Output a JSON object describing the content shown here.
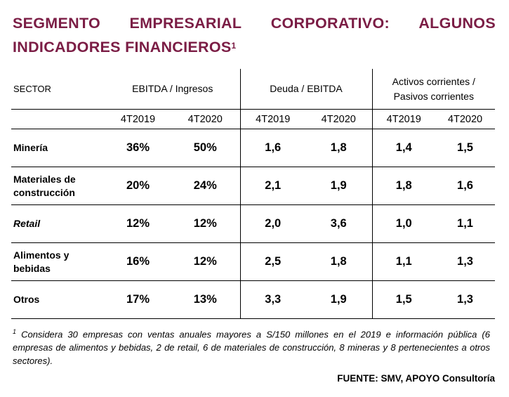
{
  "title": {
    "line1_words": [
      "SEGMENTO",
      "EMPRESARIAL",
      "CORPORATIVO:",
      "ALGUNOS"
    ],
    "line2": "INDICADORES FINANCIEROS",
    "footnote_mark": "1"
  },
  "table": {
    "sector_header": "SECTOR",
    "groups": [
      {
        "line1": "EBITDA / Ingresos",
        "line2": ""
      },
      {
        "line1": "Deuda / EBITDA",
        "line2": ""
      },
      {
        "line1": "Activos corrientes /",
        "line2": "Pasivos corrientes"
      }
    ],
    "periods": [
      "4T2019",
      "4T2020",
      "4T2019",
      "4T2020",
      "4T2019",
      "4T2020"
    ],
    "rows": [
      {
        "sector_l1": "Minería",
        "sector_l2": "",
        "values": [
          "36%",
          "50%",
          "1,6",
          "1,8",
          "1,4",
          "1,5"
        ]
      },
      {
        "sector_l1": "Materiales de",
        "sector_l2": "construcción",
        "values": [
          "20%",
          "24%",
          "2,1",
          "1,9",
          "1,8",
          "1,6"
        ]
      },
      {
        "sector_l1": "Retail",
        "sector_l2": "",
        "values": [
          "12%",
          "12%",
          "2,0",
          "3,6",
          "1,0",
          "1,1"
        ]
      },
      {
        "sector_l1": "Alimentos y",
        "sector_l2": "bebidas",
        "values": [
          "16%",
          "12%",
          "2,5",
          "1,8",
          "1,1",
          "1,3"
        ]
      },
      {
        "sector_l1": "Otros",
        "sector_l2": "",
        "values": [
          "17%",
          "13%",
          "3,3",
          "1,9",
          "1,5",
          "1,3"
        ]
      }
    ]
  },
  "footnote": {
    "mark": "1",
    "text": "Considera 30 empresas con ventas anuales mayores a S/150 millones en el 2019 e información pública (6 empresas de alimentos y bebidas, 2 de retail, 6 de materiales de construcción, 8 mineras y 8 pertenecientes a otros sectores)."
  },
  "source": "FUENTE: SMV, APOYO Consultoría",
  "colors": {
    "title": "#7b1d45"
  }
}
